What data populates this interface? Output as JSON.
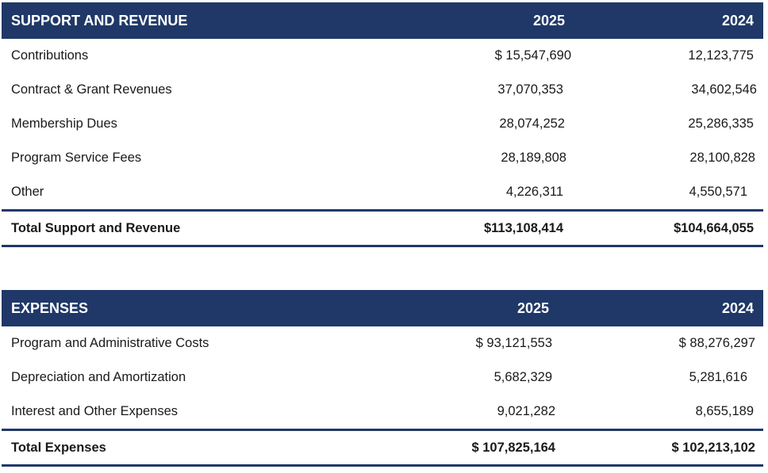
{
  "support": {
    "header": {
      "title": "SUPPORT AND REVENUE",
      "col1": "2025",
      "col2": "2024"
    },
    "rows": [
      {
        "label": "Contributions",
        "v2025": "$  15,547,690",
        "v2024": "12,123,775"
      },
      {
        "label": "Contract & Grant Revenues",
        "v2025": "37,070,353",
        "v2024": "34,602,546"
      },
      {
        "label": "Membership Dues",
        "v2025": "28,074,252",
        "v2024": "25,286,335"
      },
      {
        "label": "Program Service Fees",
        "v2025": "28,189,808",
        "v2024": "28,100,828"
      },
      {
        "label": "Other",
        "v2025": "4,226,311",
        "v2024": "4,550,571"
      }
    ],
    "total": {
      "label": "Total Support and Revenue",
      "v2025": "$113,108,414",
      "v2024": "$104,664,055"
    }
  },
  "expenses": {
    "header": {
      "title": "EXPENSES",
      "col1": "2025",
      "col2": "2024"
    },
    "rows": [
      {
        "label": "Program and Administrative Costs",
        "v2025": "$  93,121,553",
        "v2024": "$  88,276,297"
      },
      {
        "label": "Depreciation and Amortization",
        "v2025": "5,682,329",
        "v2024": "5,281,616"
      },
      {
        "label": "Interest and Other Expenses",
        "v2025": "9,021,282",
        "v2024": "8,655,189"
      }
    ],
    "total": {
      "label": "Total Expenses",
      "v2025": "$  107,825,164",
      "v2024": "$ 102,213,102"
    }
  }
}
